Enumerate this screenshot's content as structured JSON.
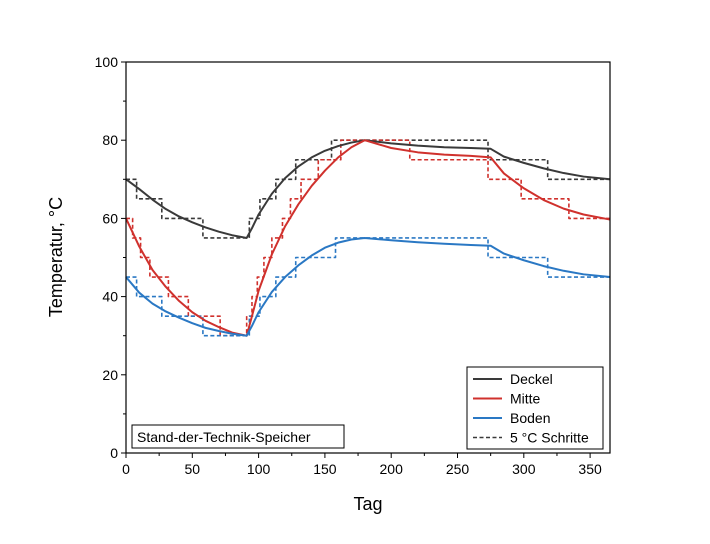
{
  "chart_data": {
    "type": "line",
    "xlabel": "Tag",
    "ylabel": "Temperatur, °C",
    "xlim": [
      0,
      365
    ],
    "ylim": [
      0,
      100
    ],
    "xticks": [
      0,
      50,
      100,
      150,
      200,
      250,
      300,
      350
    ],
    "yticks": [
      0,
      20,
      40,
      60,
      80,
      100
    ],
    "annotation": "Stand-der-Technik-Speicher",
    "legend_position": "bottom-right",
    "series": [
      {
        "name": "Deckel",
        "color": "#3a3a3a",
        "style": "solid",
        "points": [
          [
            0,
            70
          ],
          [
            10,
            67.5
          ],
          [
            20,
            64.8
          ],
          [
            30,
            62.4
          ],
          [
            40,
            60.5
          ],
          [
            50,
            59
          ],
          [
            60,
            57.7
          ],
          [
            70,
            56.6
          ],
          [
            80,
            55.7
          ],
          [
            91,
            55
          ],
          [
            95,
            57.5
          ],
          [
            100,
            61
          ],
          [
            110,
            66.3
          ],
          [
            120,
            70.3
          ],
          [
            130,
            73.3
          ],
          [
            140,
            75.6
          ],
          [
            150,
            77.3
          ],
          [
            160,
            78.5
          ],
          [
            170,
            79.4
          ],
          [
            180,
            80
          ],
          [
            200,
            79.2
          ],
          [
            220,
            78.6
          ],
          [
            240,
            78.2
          ],
          [
            260,
            78
          ],
          [
            275,
            77.8
          ],
          [
            285,
            75.8
          ],
          [
            300,
            74.2
          ],
          [
            315,
            72.8
          ],
          [
            330,
            71.6
          ],
          [
            345,
            70.7
          ],
          [
            365,
            70
          ]
        ]
      },
      {
        "name": "Mitte",
        "color": "#d0312d",
        "style": "solid",
        "points": [
          [
            0,
            60
          ],
          [
            5,
            56.4
          ],
          [
            10,
            52.8
          ],
          [
            20,
            46.8
          ],
          [
            30,
            42.5
          ],
          [
            40,
            38.9
          ],
          [
            50,
            36
          ],
          [
            60,
            33.8
          ],
          [
            70,
            32.2
          ],
          [
            80,
            30.8
          ],
          [
            91,
            30
          ],
          [
            95,
            35
          ],
          [
            100,
            41.5
          ],
          [
            110,
            50.8
          ],
          [
            120,
            58
          ],
          [
            130,
            63.6
          ],
          [
            140,
            68.3
          ],
          [
            150,
            72.2
          ],
          [
            160,
            75.6
          ],
          [
            170,
            78.2
          ],
          [
            180,
            80
          ],
          [
            200,
            78
          ],
          [
            220,
            76.9
          ],
          [
            240,
            76.3
          ],
          [
            260,
            76
          ],
          [
            275,
            75.6
          ],
          [
            285,
            71.5
          ],
          [
            300,
            67.7
          ],
          [
            315,
            64.7
          ],
          [
            330,
            62.5
          ],
          [
            345,
            61
          ],
          [
            365,
            59.7
          ]
        ]
      },
      {
        "name": "Boden",
        "color": "#2a78c4",
        "style": "solid",
        "points": [
          [
            0,
            45
          ],
          [
            10,
            41
          ],
          [
            20,
            38.2
          ],
          [
            30,
            36.2
          ],
          [
            40,
            34.6
          ],
          [
            50,
            33.2
          ],
          [
            60,
            32
          ],
          [
            70,
            31.2
          ],
          [
            80,
            30.5
          ],
          [
            91,
            30
          ],
          [
            95,
            32.5
          ],
          [
            100,
            36
          ],
          [
            110,
            41.2
          ],
          [
            120,
            45
          ],
          [
            130,
            48
          ],
          [
            140,
            50.5
          ],
          [
            150,
            52.5
          ],
          [
            160,
            53.8
          ],
          [
            170,
            54.6
          ],
          [
            180,
            55
          ],
          [
            200,
            54.4
          ],
          [
            220,
            53.9
          ],
          [
            240,
            53.5
          ],
          [
            260,
            53.2
          ],
          [
            275,
            53
          ],
          [
            285,
            51
          ],
          [
            300,
            49.3
          ],
          [
            315,
            47.8
          ],
          [
            330,
            46.6
          ],
          [
            345,
            45.7
          ],
          [
            365,
            45
          ]
        ]
      },
      {
        "name": "5 °C Schritte",
        "color": "#3a3a3a",
        "style": "dashed",
        "points": [
          [
            0,
            70
          ],
          [
            8,
            70
          ],
          [
            8,
            65
          ],
          [
            27,
            65
          ],
          [
            27,
            60
          ],
          [
            58,
            60
          ],
          [
            58,
            55
          ],
          [
            93,
            55
          ],
          [
            93,
            60
          ],
          [
            101,
            60
          ],
          [
            101,
            65
          ],
          [
            113,
            65
          ],
          [
            113,
            70
          ],
          [
            128,
            70
          ],
          [
            128,
            75
          ],
          [
            155,
            75
          ],
          [
            155,
            80
          ],
          [
            273,
            80
          ],
          [
            273,
            75
          ],
          [
            318,
            75
          ],
          [
            318,
            70
          ],
          [
            365,
            70
          ]
        ]
      },
      {
        "name": "Mitte Schritte",
        "color": "#d0312d",
        "style": "dashed",
        "legend": false,
        "points": [
          [
            0,
            60
          ],
          [
            5,
            60
          ],
          [
            5,
            55
          ],
          [
            11,
            55
          ],
          [
            11,
            50
          ],
          [
            18,
            50
          ],
          [
            18,
            45
          ],
          [
            32,
            45
          ],
          [
            32,
            40
          ],
          [
            47,
            40
          ],
          [
            47,
            35
          ],
          [
            71,
            35
          ],
          [
            71,
            30
          ],
          [
            91,
            30
          ],
          [
            91,
            35
          ],
          [
            95,
            35
          ],
          [
            95,
            40
          ],
          [
            99,
            40
          ],
          [
            99,
            45
          ],
          [
            104,
            45
          ],
          [
            104,
            50
          ],
          [
            110,
            50
          ],
          [
            110,
            55
          ],
          [
            118,
            55
          ],
          [
            118,
            60
          ],
          [
            124,
            60
          ],
          [
            124,
            65
          ],
          [
            132,
            65
          ],
          [
            132,
            70
          ],
          [
            145,
            70
          ],
          [
            145,
            75
          ],
          [
            162,
            75
          ],
          [
            162,
            80
          ],
          [
            214,
            80
          ],
          [
            214,
            75
          ],
          [
            273,
            75
          ],
          [
            273,
            70
          ],
          [
            298,
            70
          ],
          [
            298,
            65
          ],
          [
            334,
            65
          ],
          [
            334,
            60
          ],
          [
            365,
            60
          ]
        ]
      },
      {
        "name": "Boden Schritte",
        "color": "#2a78c4",
        "style": "dashed",
        "legend": false,
        "points": [
          [
            0,
            45
          ],
          [
            8,
            45
          ],
          [
            8,
            40
          ],
          [
            27,
            40
          ],
          [
            27,
            35
          ],
          [
            58,
            35
          ],
          [
            58,
            30
          ],
          [
            93,
            30
          ],
          [
            93,
            35
          ],
          [
            101,
            35
          ],
          [
            101,
            40
          ],
          [
            113,
            40
          ],
          [
            113,
            45
          ],
          [
            128,
            45
          ],
          [
            128,
            50
          ],
          [
            158,
            50
          ],
          [
            158,
            55
          ],
          [
            273,
            55
          ],
          [
            273,
            50
          ],
          [
            318,
            50
          ],
          [
            318,
            45
          ],
          [
            365,
            45
          ]
        ]
      }
    ]
  }
}
